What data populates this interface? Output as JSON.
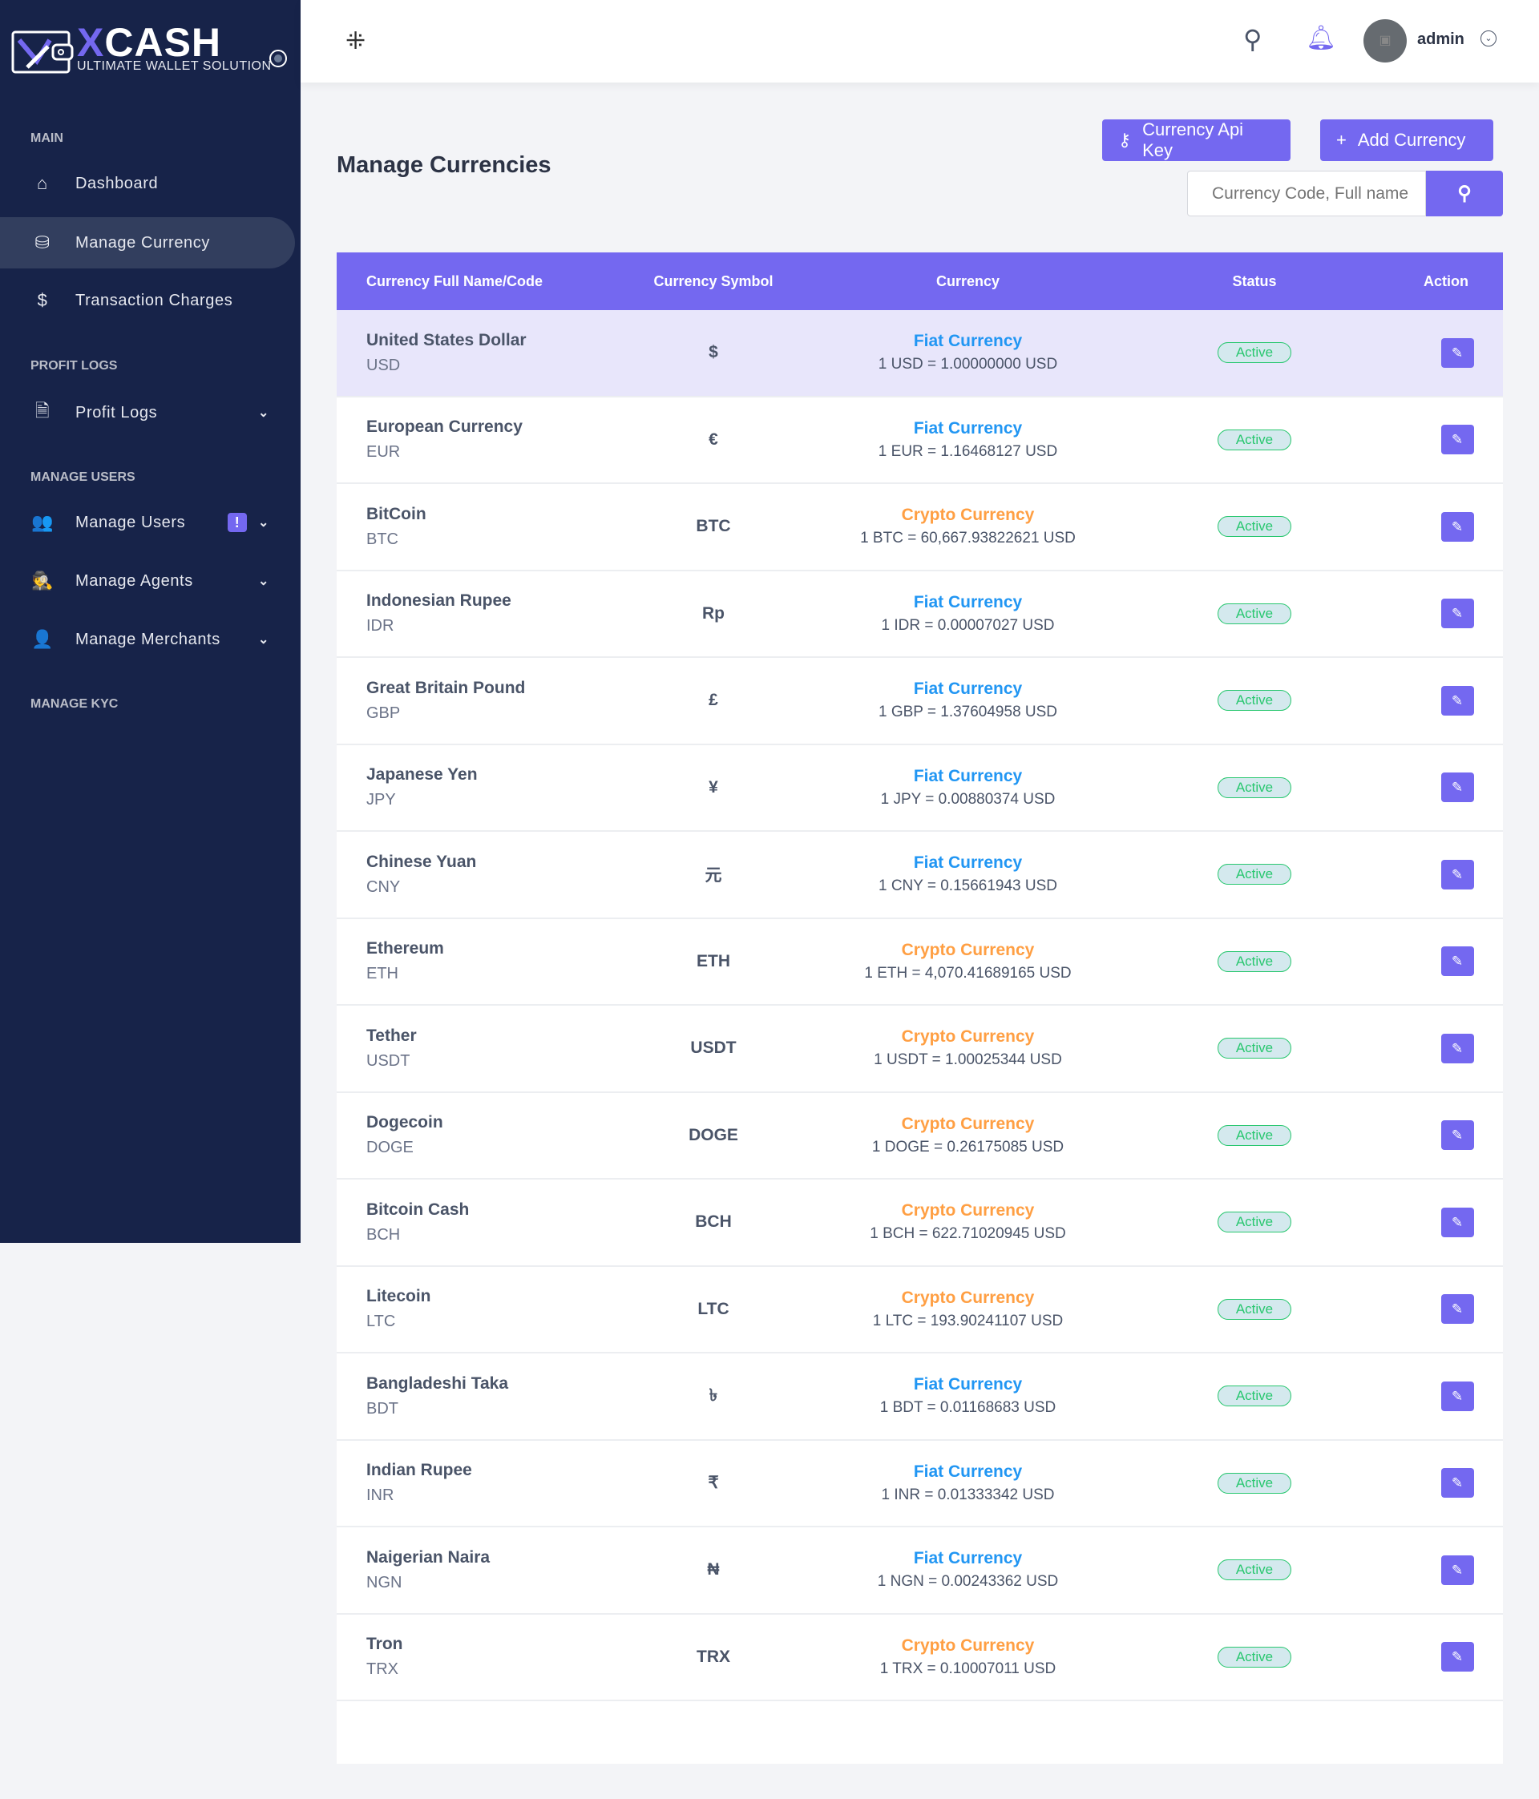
{
  "brand": {
    "name_x": "X",
    "name_rest": "CASH",
    "tagline": "ULTIMATE WALLET SOLUTION"
  },
  "sidebar": {
    "sections": [
      "MAIN",
      "PROFIT LOGS",
      "MANAGE USERS",
      "MANAGE KYC"
    ],
    "items": [
      {
        "label": "Dashboard",
        "icon": "home-icon"
      },
      {
        "label": "Manage Currency",
        "icon": "coins-icon",
        "active": true
      },
      {
        "label": "Transaction Charges",
        "icon": "hand-dollar-icon"
      },
      {
        "label": "Profit Logs",
        "icon": "invoice-icon"
      },
      {
        "label": "Manage Users",
        "icon": "users-icon",
        "badge": "!"
      },
      {
        "label": "Manage Agents",
        "icon": "agent-icon"
      },
      {
        "label": "Manage Merchants",
        "icon": "user-icon"
      }
    ]
  },
  "header": {
    "user": "admin"
  },
  "page": {
    "title": "Manage Currencies",
    "api_key_label": "Currency Api Key",
    "add_label": "Add Currency",
    "search_placeholder": "Currency Code, Full name"
  },
  "colors": {
    "accent": "#7468f0",
    "fiat": "#2196f3",
    "crypto": "#ff9f43",
    "active": "#28c76f",
    "sidebar": "#172349"
  },
  "table": {
    "headers": [
      "Currency Full Name/Code",
      "Currency Symbol",
      "Currency",
      "Status",
      "Action"
    ],
    "rows": [
      {
        "name": "United States Dollar",
        "code": "USD",
        "symbol": "$",
        "type": "Fiat Currency",
        "rate": "1 USD = 1.00000000 USD",
        "status": "Active"
      },
      {
        "name": "European Currency",
        "code": "EUR",
        "symbol": "€",
        "type": "Fiat Currency",
        "rate": "1 EUR = 1.16468127 USD",
        "status": "Active"
      },
      {
        "name": "BitCoin",
        "code": "BTC",
        "symbol": "BTC",
        "type": "Crypto Currency",
        "rate": "1 BTC = 60,667.93822621 USD",
        "status": "Active"
      },
      {
        "name": "Indonesian Rupee",
        "code": "IDR",
        "symbol": "Rp",
        "type": "Fiat Currency",
        "rate": "1 IDR = 0.00007027 USD",
        "status": "Active"
      },
      {
        "name": "Great Britain Pound",
        "code": "GBP",
        "symbol": "£",
        "type": "Fiat Currency",
        "rate": "1 GBP = 1.37604958 USD",
        "status": "Active"
      },
      {
        "name": "Japanese Yen",
        "code": "JPY",
        "symbol": "¥",
        "type": "Fiat Currency",
        "rate": "1 JPY = 0.00880374 USD",
        "status": "Active"
      },
      {
        "name": "Chinese Yuan",
        "code": "CNY",
        "symbol": "元",
        "type": "Fiat Currency",
        "rate": "1 CNY = 0.15661943 USD",
        "status": "Active"
      },
      {
        "name": "Ethereum",
        "code": "ETH",
        "symbol": "ETH",
        "type": "Crypto Currency",
        "rate": "1 ETH = 4,070.41689165 USD",
        "status": "Active"
      },
      {
        "name": "Tether",
        "code": "USDT",
        "symbol": "USDT",
        "type": "Crypto Currency",
        "rate": "1 USDT = 1.00025344 USD",
        "status": "Active"
      },
      {
        "name": "Dogecoin",
        "code": "DOGE",
        "symbol": "DOGE",
        "type": "Crypto Currency",
        "rate": "1 DOGE = 0.26175085 USD",
        "status": "Active"
      },
      {
        "name": "Bitcoin Cash",
        "code": "BCH",
        "symbol": "BCH",
        "type": "Crypto Currency",
        "rate": "1 BCH = 622.71020945 USD",
        "status": "Active"
      },
      {
        "name": "Litecoin",
        "code": "LTC",
        "symbol": "LTC",
        "type": "Crypto Currency",
        "rate": "1 LTC = 193.90241107 USD",
        "status": "Active"
      },
      {
        "name": "Bangladeshi Taka",
        "code": "BDT",
        "symbol": "৳",
        "type": "Fiat Currency",
        "rate": "1 BDT = 0.01168683 USD",
        "status": "Active"
      },
      {
        "name": "Indian Rupee",
        "code": "INR",
        "symbol": "₹",
        "type": "Fiat Currency",
        "rate": "1 INR = 0.01333342 USD",
        "status": "Active"
      },
      {
        "name": "Naigerian Naira",
        "code": "NGN",
        "symbol": "₦",
        "type": "Fiat Currency",
        "rate": "1 NGN = 0.00243362 USD",
        "status": "Active"
      },
      {
        "name": "Tron",
        "code": "TRX",
        "symbol": "TRX",
        "type": "Crypto Currency",
        "rate": "1 TRX = 0.10007011 USD",
        "status": "Active"
      }
    ]
  }
}
